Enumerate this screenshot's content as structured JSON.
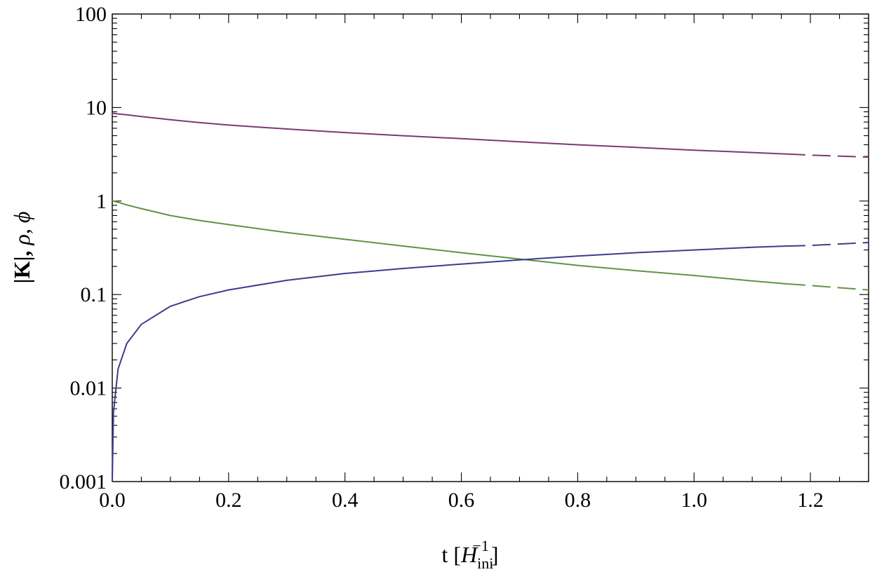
{
  "chart_data": {
    "type": "line",
    "title": "",
    "xlabel": "t [H_ini^-1]",
    "ylabel": "|K|, ρ, φ",
    "xlabel_parts": {
      "main": "t [",
      "var": "H",
      "sub": "ini",
      "sup": "−1",
      "close": "]"
    },
    "ylabel_parts": {
      "main": "|K|, ",
      "rho": "ρ",
      "sep": ", ",
      "phi": "ϕ"
    },
    "xlim": [
      0.0,
      1.3
    ],
    "ylim": [
      0.001,
      100
    ],
    "yscale": "log",
    "grid": false,
    "legend": "none",
    "x_ticks": [
      "0.0",
      "0.2",
      "0.4",
      "0.6",
      "0.8",
      "1.0",
      "1.2"
    ],
    "y_ticks": [
      "0.001",
      "0.01",
      "0.1",
      "1",
      "10",
      "100"
    ],
    "x": [
      0.0,
      0.002,
      0.01,
      0.025,
      0.05,
      0.1,
      0.15,
      0.2,
      0.3,
      0.4,
      0.5,
      0.6,
      0.7,
      0.8,
      0.9,
      1.0,
      1.1,
      1.16,
      1.2,
      1.3
    ],
    "series": [
      {
        "color": "#7a3b6e",
        "solid_until": 1.16,
        "values": [
          8.7,
          8.66,
          8.55,
          8.35,
          8.0,
          7.4,
          6.9,
          6.5,
          5.9,
          5.4,
          5.0,
          4.65,
          4.3,
          4.0,
          3.75,
          3.5,
          3.3,
          3.18,
          3.1,
          2.95
        ]
      },
      {
        "color": "#5e9446",
        "solid_until": 1.17,
        "values": [
          1.02,
          1.0,
          0.97,
          0.91,
          0.83,
          0.7,
          0.62,
          0.56,
          0.46,
          0.39,
          0.33,
          0.28,
          0.24,
          0.205,
          0.18,
          0.16,
          0.14,
          0.13,
          0.125,
          0.112
        ]
      },
      {
        "color": "#3b3d8c",
        "solid_until": 1.17,
        "values": [
          0.001,
          0.0055,
          0.016,
          0.03,
          0.048,
          0.075,
          0.095,
          0.112,
          0.142,
          0.168,
          0.19,
          0.212,
          0.235,
          0.258,
          0.28,
          0.3,
          0.32,
          0.33,
          0.335,
          0.36
        ]
      }
    ]
  }
}
